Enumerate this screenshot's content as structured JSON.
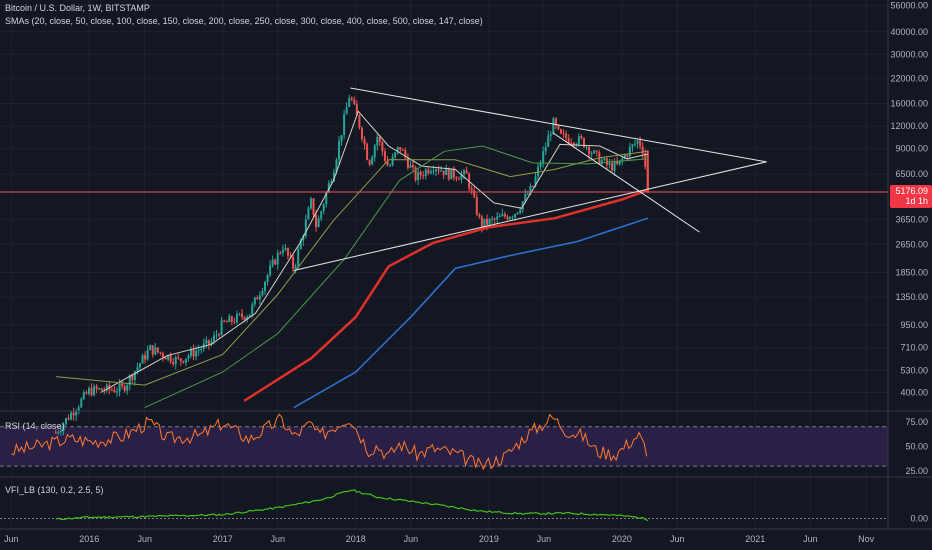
{
  "header": {
    "symbol_title": "Bitcoin / U.S. Dollar, 1W, BITSTAMP",
    "sma_label": "SMAs (20, close, 50, close, 100, close, 150, close, 200, close, 250, close, 300, close, 400, close, 500, close, 147, close)",
    "rsi_label": "RSI (14, close)",
    "vfi_label": "VFI_LB (130, 0.2, 2.5, 5)"
  },
  "price_badge": {
    "value": "5176.09",
    "countdown": "1d 1h",
    "color": "#f23645"
  },
  "colors": {
    "background": "#131722",
    "grid": "#1e222d",
    "up": "#26a69a",
    "down": "#ef5350",
    "sma_20": "#d7cfc6",
    "sma_50": "#8e9e4a",
    "sma_100": "#4a9a4a",
    "sma_200": "#e0302a",
    "sma_300": "#2f6fd0",
    "rsi_line": "#ff7a2e",
    "rsi_band": "#2a1f45",
    "vfi_line": "#45c01b"
  },
  "chart_data": [
    {
      "type": "candlestick",
      "title": "Bitcoin / U.S. Dollar, 1W, BITSTAMP",
      "x_ticks": [
        "Jun",
        "2016",
        "Jun",
        "2017",
        "Jun",
        "2018",
        "Jun",
        "2019",
        "Jun",
        "2020",
        "Jun",
        "2021",
        "Jun",
        "Nov"
      ],
      "y_ticks": [
        "56000.00",
        "40000.00",
        "30000.00",
        "22000.00",
        "16000.00",
        "12000.00",
        "9000.00",
        "6500.00",
        "5176.09",
        "3650.00",
        "2650.00",
        "1850.00",
        "1350.00",
        "950.00",
        "710.00",
        "530.00",
        "400.00"
      ],
      "y_scale": "log",
      "ylim": [
        320,
        60000
      ],
      "grid": true,
      "last_close": 5176.09,
      "price_anchors": [
        {
          "date": "2015-10-01",
          "price": 240
        },
        {
          "date": "2016-01-01",
          "price": 410
        },
        {
          "date": "2016-04-01",
          "price": 420
        },
        {
          "date": "2016-06-15",
          "price": 700
        },
        {
          "date": "2016-09-01",
          "price": 600
        },
        {
          "date": "2016-12-01",
          "price": 760
        },
        {
          "date": "2017-01-01",
          "price": 960
        },
        {
          "date": "2017-03-15",
          "price": 1100
        },
        {
          "date": "2017-05-15",
          "price": 2000
        },
        {
          "date": "2017-06-15",
          "price": 2600
        },
        {
          "date": "2017-07-15",
          "price": 1950
        },
        {
          "date": "2017-09-01",
          "price": 4600
        },
        {
          "date": "2017-09-15",
          "price": 3300
        },
        {
          "date": "2017-11-01",
          "price": 7000
        },
        {
          "date": "2017-12-15",
          "price": 18000
        },
        {
          "date": "2018-01-15",
          "price": 11500
        },
        {
          "date": "2018-02-06",
          "price": 7500
        },
        {
          "date": "2018-03-01",
          "price": 10500
        },
        {
          "date": "2018-04-01",
          "price": 7000
        },
        {
          "date": "2018-05-01",
          "price": 9300
        },
        {
          "date": "2018-06-15",
          "price": 6200
        },
        {
          "date": "2018-08-01",
          "price": 7300
        },
        {
          "date": "2018-09-15",
          "price": 6500
        },
        {
          "date": "2018-11-01",
          "price": 6400
        },
        {
          "date": "2018-12-10",
          "price": 3400
        },
        {
          "date": "2019-01-15",
          "price": 3600
        },
        {
          "date": "2019-03-15",
          "price": 4000
        },
        {
          "date": "2019-05-01",
          "price": 5500
        },
        {
          "date": "2019-06-26",
          "price": 12500
        },
        {
          "date": "2019-07-15",
          "price": 10500
        },
        {
          "date": "2019-08-15",
          "price": 10200
        },
        {
          "date": "2019-09-15",
          "price": 9900
        },
        {
          "date": "2019-10-20",
          "price": 8200
        },
        {
          "date": "2019-11-25",
          "price": 7200
        },
        {
          "date": "2019-12-20",
          "price": 7200
        },
        {
          "date": "2020-01-20",
          "price": 8800
        },
        {
          "date": "2020-02-15",
          "price": 10000
        },
        {
          "date": "2020-03-01",
          "price": 8700
        },
        {
          "date": "2020-03-12",
          "price": 5176.09
        }
      ],
      "trendlines": [
        {
          "from": {
            "date": "2017-12-17",
            "price": 19500
          },
          "to": {
            "date": "2021-02-01",
            "price": 7600
          }
        },
        {
          "from": {
            "date": "2017-07-15",
            "price": 1900
          },
          "to": {
            "date": "2021-02-01",
            "price": 7600
          }
        },
        {
          "from": {
            "date": "2019-06-26",
            "price": 11000
          },
          "to": {
            "date": "2020-08-01",
            "price": 3100
          }
        }
      ],
      "horizontal_levels": [
        {
          "price": 5176.09
        }
      ],
      "sma_series": [
        {
          "name": "SMA 20",
          "points": [
            {
              "date": "2016-02-01",
              "price": 400
            },
            {
              "date": "2016-08-01",
              "price": 640
            },
            {
              "date": "2016-12-01",
              "price": 740
            },
            {
              "date": "2017-04-01",
              "price": 1100
            },
            {
              "date": "2017-08-01",
              "price": 2700
            },
            {
              "date": "2017-11-01",
              "price": 6000
            },
            {
              "date": "2018-01-08",
              "price": 14500
            },
            {
              "date": "2018-04-01",
              "price": 9300
            },
            {
              "date": "2018-07-01",
              "price": 7200
            },
            {
              "date": "2018-10-01",
              "price": 6900
            },
            {
              "date": "2019-01-15",
              "price": 4500
            },
            {
              "date": "2019-04-01",
              "price": 4200
            },
            {
              "date": "2019-07-15",
              "price": 9500
            },
            {
              "date": "2019-11-01",
              "price": 9300
            },
            {
              "date": "2020-01-15",
              "price": 7900
            },
            {
              "date": "2020-03-12",
              "price": 8400
            }
          ]
        },
        {
          "name": "SMA 50",
          "points": [
            {
              "date": "2015-10-01",
              "price": 490
            },
            {
              "date": "2016-06-01",
              "price": 440
            },
            {
              "date": "2017-01-01",
              "price": 650
            },
            {
              "date": "2017-06-01",
              "price": 1400
            },
            {
              "date": "2017-11-01",
              "price": 3600
            },
            {
              "date": "2018-04-01",
              "price": 7800
            },
            {
              "date": "2018-10-01",
              "price": 7800
            },
            {
              "date": "2019-03-01",
              "price": 6300
            },
            {
              "date": "2019-07-01",
              "price": 6900
            },
            {
              "date": "2019-11-01",
              "price": 8000
            },
            {
              "date": "2020-03-12",
              "price": 8700
            }
          ]
        },
        {
          "name": "SMA 100",
          "points": [
            {
              "date": "2016-06-01",
              "price": 330
            },
            {
              "date": "2017-01-01",
              "price": 520
            },
            {
              "date": "2017-06-01",
              "price": 850
            },
            {
              "date": "2017-12-01",
              "price": 2200
            },
            {
              "date": "2018-05-01",
              "price": 6000
            },
            {
              "date": "2018-09-01",
              "price": 8700
            },
            {
              "date": "2018-12-15",
              "price": 9300
            },
            {
              "date": "2019-05-01",
              "price": 7500
            },
            {
              "date": "2019-10-01",
              "price": 7400
            },
            {
              "date": "2020-03-12",
              "price": 7900
            }
          ]
        },
        {
          "name": "SMA 200",
          "points": [
            {
              "date": "2017-03-01",
              "price": 360
            },
            {
              "date": "2017-09-01",
              "price": 620
            },
            {
              "date": "2018-01-01",
              "price": 1050
            },
            {
              "date": "2018-04-01",
              "price": 2000
            },
            {
              "date": "2018-08-01",
              "price": 2700
            },
            {
              "date": "2019-01-01",
              "price": 3300
            },
            {
              "date": "2019-07-01",
              "price": 3700
            },
            {
              "date": "2020-01-01",
              "price": 4700
            },
            {
              "date": "2020-03-12",
              "price": 5300
            }
          ]
        },
        {
          "name": "SMA 300",
          "points": [
            {
              "date": "2017-07-15",
              "price": 330
            },
            {
              "date": "2018-01-01",
              "price": 520
            },
            {
              "date": "2018-06-01",
              "price": 1050
            },
            {
              "date": "2018-10-01",
              "price": 1950
            },
            {
              "date": "2019-03-01",
              "price": 2300
            },
            {
              "date": "2019-09-01",
              "price": 2750
            },
            {
              "date": "2020-03-12",
              "price": 3700
            }
          ]
        }
      ]
    },
    {
      "type": "line",
      "title": "RSI (14, close)",
      "y_ticks": [
        "75.00",
        "50.00",
        "25.00"
      ],
      "ylim": [
        20,
        85
      ],
      "bands": [
        70,
        30
      ],
      "points": [
        {
          "date": "2015-06-01",
          "value": 45
        },
        {
          "date": "2015-09-01",
          "value": 52
        },
        {
          "date": "2015-11-10",
          "value": 58
        },
        {
          "date": "2016-01-15",
          "value": 55
        },
        {
          "date": "2016-04-01",
          "value": 60
        },
        {
          "date": "2016-06-15",
          "value": 75
        },
        {
          "date": "2016-08-01",
          "value": 58
        },
        {
          "date": "2016-11-01",
          "value": 61
        },
        {
          "date": "2017-01-01",
          "value": 74
        },
        {
          "date": "2017-03-15",
          "value": 57
        },
        {
          "date": "2017-06-10",
          "value": 78
        },
        {
          "date": "2017-07-15",
          "value": 60
        },
        {
          "date": "2017-09-01",
          "value": 74
        },
        {
          "date": "2017-09-20",
          "value": 60
        },
        {
          "date": "2017-12-15",
          "value": 80
        },
        {
          "date": "2018-02-06",
          "value": 46
        },
        {
          "date": "2018-03-01",
          "value": 51
        },
        {
          "date": "2018-04-01",
          "value": 40
        },
        {
          "date": "2018-05-01",
          "value": 53
        },
        {
          "date": "2018-06-20",
          "value": 42
        },
        {
          "date": "2018-08-01",
          "value": 48
        },
        {
          "date": "2018-10-01",
          "value": 43
        },
        {
          "date": "2018-12-10",
          "value": 30
        },
        {
          "date": "2019-02-15",
          "value": 40
        },
        {
          "date": "2019-04-15",
          "value": 62
        },
        {
          "date": "2019-06-26",
          "value": 80
        },
        {
          "date": "2019-08-01",
          "value": 66
        },
        {
          "date": "2019-09-15",
          "value": 61
        },
        {
          "date": "2019-10-25",
          "value": 45
        },
        {
          "date": "2019-12-15",
          "value": 42
        },
        {
          "date": "2020-02-15",
          "value": 62
        },
        {
          "date": "2020-03-01",
          "value": 52
        },
        {
          "date": "2020-03-12",
          "value": 33
        }
      ]
    },
    {
      "type": "line",
      "title": "VFI_LB (130, 0.2, 2.5, 5)",
      "y_ticks": [
        "0.00"
      ],
      "ylim": [
        -4,
        17
      ],
      "points": [
        {
          "date": "2015-10-01",
          "value": -0.3
        },
        {
          "date": "2016-01-01",
          "value": 0.5
        },
        {
          "date": "2016-06-01",
          "value": 0.8
        },
        {
          "date": "2017-01-01",
          "value": 1.6
        },
        {
          "date": "2017-06-01",
          "value": 4.5
        },
        {
          "date": "2017-10-01",
          "value": 8
        },
        {
          "date": "2017-12-20",
          "value": 12
        },
        {
          "date": "2018-03-01",
          "value": 9
        },
        {
          "date": "2018-08-01",
          "value": 6
        },
        {
          "date": "2018-12-15",
          "value": 3
        },
        {
          "date": "2019-04-01",
          "value": 2
        },
        {
          "date": "2019-08-01",
          "value": 2.2
        },
        {
          "date": "2019-12-01",
          "value": 1.5
        },
        {
          "date": "2020-02-15",
          "value": 0.5
        },
        {
          "date": "2020-03-12",
          "value": -0.5
        }
      ]
    }
  ]
}
